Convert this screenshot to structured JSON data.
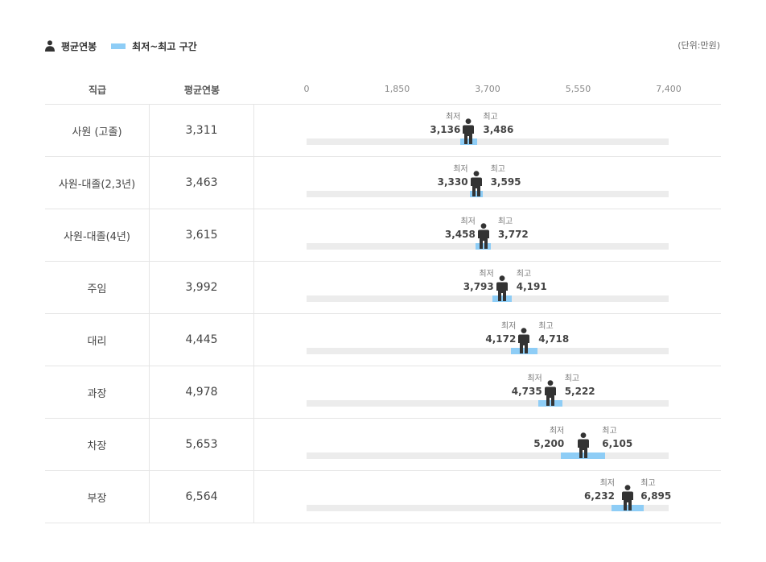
{
  "legend": {
    "avg_label": "평균연봉",
    "range_label": "최저~최고 구간"
  },
  "unit": "(단위:만원)",
  "colors": {
    "range": "#8ecdf6",
    "track": "#ececec",
    "person": "#333333"
  },
  "icons": {
    "person": "person-icon"
  },
  "header": {
    "grade": "직급",
    "avg": "평균연봉"
  },
  "chart_data": {
    "type": "range-dot",
    "xlim": [
      0,
      7400
    ],
    "ticks": [
      "0",
      "1,850",
      "3,700",
      "5,550",
      "7,400"
    ],
    "tick_values": [
      0,
      1850,
      3700,
      5550,
      7400
    ],
    "min_caption": "최저",
    "max_caption": "최고",
    "rows": [
      {
        "grade": "사원 (고졸)",
        "avg": 3311,
        "avg_text": "3,311",
        "min": 3136,
        "min_text": "3,136",
        "max": 3486,
        "max_text": "3,486"
      },
      {
        "grade": "사원-대졸(2,3년)",
        "avg": 3463,
        "avg_text": "3,463",
        "min": 3330,
        "min_text": "3,330",
        "max": 3595,
        "max_text": "3,595"
      },
      {
        "grade": "사원-대졸(4년)",
        "avg": 3615,
        "avg_text": "3,615",
        "min": 3458,
        "min_text": "3,458",
        "max": 3772,
        "max_text": "3,772"
      },
      {
        "grade": "주임",
        "avg": 3992,
        "avg_text": "3,992",
        "min": 3793,
        "min_text": "3,793",
        "max": 4191,
        "max_text": "4,191"
      },
      {
        "grade": "대리",
        "avg": 4445,
        "avg_text": "4,445",
        "min": 4172,
        "min_text": "4,172",
        "max": 4718,
        "max_text": "4,718"
      },
      {
        "grade": "과장",
        "avg": 4978,
        "avg_text": "4,978",
        "min": 4735,
        "min_text": "4,735",
        "max": 5222,
        "max_text": "5,222"
      },
      {
        "grade": "차장",
        "avg": 5653,
        "avg_text": "5,653",
        "min": 5200,
        "min_text": "5,200",
        "max": 6105,
        "max_text": "6,105"
      },
      {
        "grade": "부장",
        "avg": 6564,
        "avg_text": "6,564",
        "min": 6232,
        "min_text": "6,232",
        "max": 6895,
        "max_text": "6,895"
      }
    ]
  }
}
